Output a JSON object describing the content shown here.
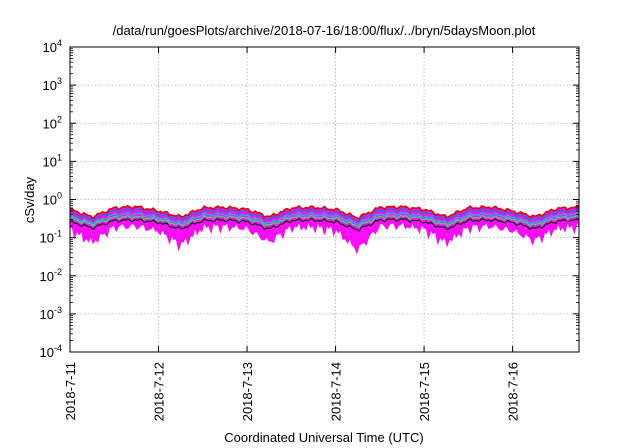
{
  "chart_data": {
    "type": "area",
    "title": "/data/run/goesPlots/archive/2018-07-16/18:00/flux/../bryn/5daysMoon.plot",
    "xlabel": "Coordinated Universal Time (UTC)",
    "ylabel": "cSv/day",
    "y_scale": "log",
    "ylim": [
      0.0001,
      10000
    ],
    "y_ticks": [
      {
        "value": 0.0001,
        "base": "10",
        "exp": "-4"
      },
      {
        "value": 0.001,
        "base": "10",
        "exp": "-3"
      },
      {
        "value": 0.01,
        "base": "10",
        "exp": "-2"
      },
      {
        "value": 0.1,
        "base": "10",
        "exp": "-1"
      },
      {
        "value": 1,
        "base": "10",
        "exp": "0"
      },
      {
        "value": 10,
        "base": "10",
        "exp": "1"
      },
      {
        "value": 100,
        "base": "10",
        "exp": "2"
      },
      {
        "value": 1000,
        "base": "10",
        "exp": "3"
      },
      {
        "value": 10000,
        "base": "10",
        "exp": "4"
      }
    ],
    "xlim": [
      "2018-07-11 00:00",
      "2018-07-16 18:00"
    ],
    "x_ticks": [
      "2018-7-11",
      "2018-7-12",
      "2018-7-13",
      "2018-7-14",
      "2018-7-15",
      "2018-7-16"
    ],
    "grid": true,
    "colors": {
      "fill_max": "#e10000",
      "fill_min": "#ff00ff",
      "upper": "#2070d0",
      "p75": "#18b8d8",
      "median": "#30e070",
      "p25": "#222222",
      "lower": "#ff00ff"
    },
    "x": [
      "2018-07-11 00:00",
      "2018-07-11 06:00",
      "2018-07-11 12:00",
      "2018-07-11 18:00",
      "2018-07-12 00:00",
      "2018-07-12 06:00",
      "2018-07-12 12:00",
      "2018-07-12 18:00",
      "2018-07-13 00:00",
      "2018-07-13 06:00",
      "2018-07-13 12:00",
      "2018-07-13 18:00",
      "2018-07-14 00:00",
      "2018-07-14 06:00",
      "2018-07-14 12:00",
      "2018-07-14 18:00",
      "2018-07-15 00:00",
      "2018-07-15 06:00",
      "2018-07-15 12:00",
      "2018-07-15 18:00",
      "2018-07-16 00:00",
      "2018-07-16 06:00",
      "2018-07-16 12:00",
      "2018-07-16 18:00"
    ],
    "series": [
      {
        "name": "",
        "color": "#e10000",
        "values": [
          0.55,
          0.35,
          0.6,
          0.65,
          0.5,
          0.35,
          0.6,
          0.62,
          0.55,
          0.35,
          0.6,
          0.62,
          0.55,
          0.33,
          0.62,
          0.64,
          0.55,
          0.35,
          0.6,
          0.63,
          0.5,
          0.35,
          0.58,
          0.62
        ]
      },
      {
        "name": "",
        "color": "#2070d0",
        "values": [
          0.45,
          0.3,
          0.5,
          0.55,
          0.42,
          0.3,
          0.5,
          0.52,
          0.46,
          0.3,
          0.5,
          0.52,
          0.46,
          0.28,
          0.52,
          0.54,
          0.46,
          0.3,
          0.5,
          0.53,
          0.42,
          0.3,
          0.48,
          0.52
        ]
      },
      {
        "name": "",
        "color": "#18b8d8",
        "values": [
          0.36,
          0.24,
          0.4,
          0.42,
          0.34,
          0.24,
          0.4,
          0.41,
          0.37,
          0.24,
          0.4,
          0.41,
          0.37,
          0.23,
          0.41,
          0.43,
          0.37,
          0.24,
          0.4,
          0.42,
          0.34,
          0.24,
          0.39,
          0.41
        ]
      },
      {
        "name": "",
        "color": "#30e070",
        "values": [
          0.32,
          0.22,
          0.34,
          0.35,
          0.3,
          0.21,
          0.34,
          0.35,
          0.32,
          0.21,
          0.34,
          0.35,
          0.32,
          0.2,
          0.35,
          0.36,
          0.32,
          0.21,
          0.34,
          0.35,
          0.3,
          0.21,
          0.33,
          0.35
        ]
      },
      {
        "name": "",
        "color": "#222222",
        "values": [
          0.26,
          0.18,
          0.28,
          0.29,
          0.25,
          0.17,
          0.28,
          0.29,
          0.26,
          0.17,
          0.28,
          0.29,
          0.26,
          0.16,
          0.29,
          0.3,
          0.26,
          0.17,
          0.28,
          0.29,
          0.25,
          0.17,
          0.27,
          0.29
        ]
      },
      {
        "name": "",
        "color": "#ff00ff",
        "values": [
          0.18,
          0.08,
          0.2,
          0.21,
          0.16,
          0.07,
          0.2,
          0.21,
          0.18,
          0.08,
          0.2,
          0.21,
          0.17,
          0.05,
          0.21,
          0.22,
          0.18,
          0.08,
          0.2,
          0.21,
          0.16,
          0.09,
          0.19,
          0.21
        ]
      }
    ]
  }
}
